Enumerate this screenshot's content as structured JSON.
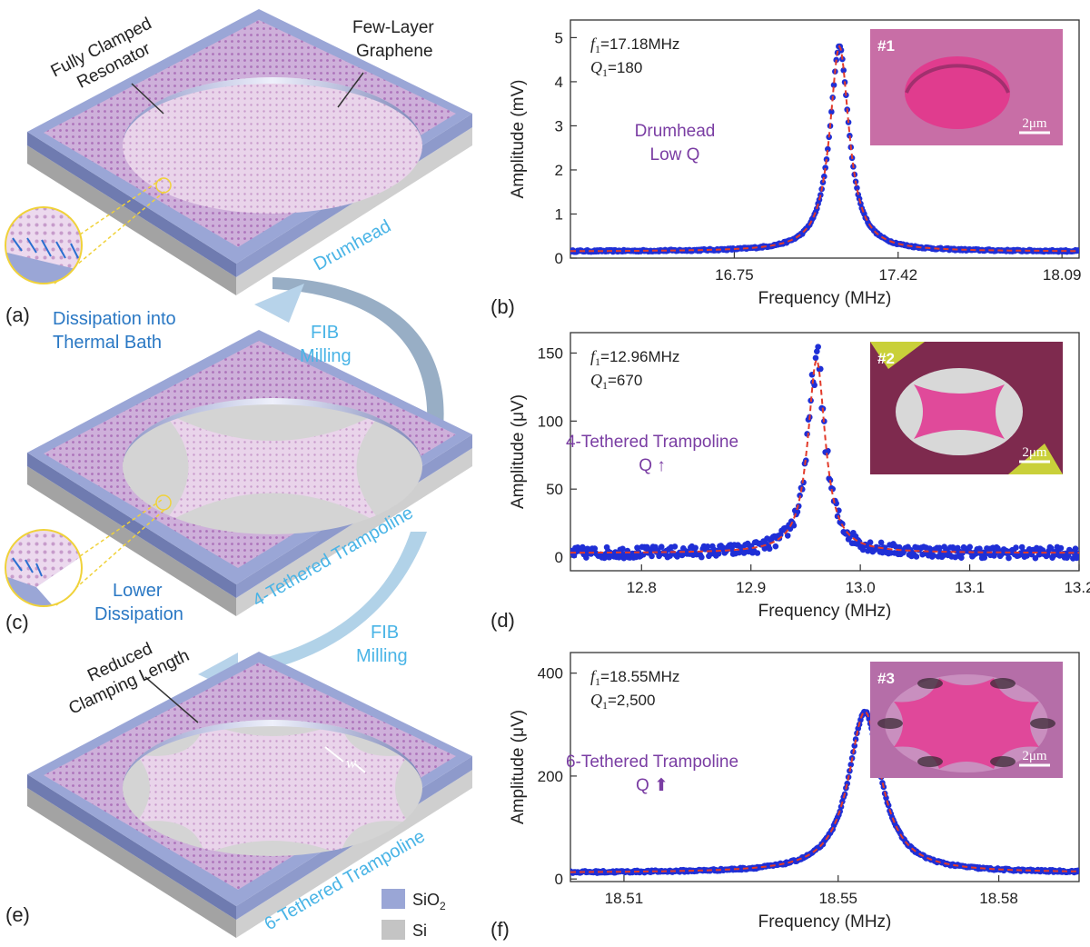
{
  "colors": {
    "sio2": "#9aa6d6",
    "si": "#c4c4c4",
    "graphene": "#d4a9d6",
    "data_points": "#1f2fd6",
    "fit_line": "#e23b2b",
    "label_blue": "#2a78c4",
    "label_cyan": "#49b4e6",
    "label_purple": "#7a3da3"
  },
  "diagrams": {
    "a": {
      "panel_label": "(a)",
      "device_label": "Drumhead",
      "callout_resonator": [
        "Fully Clamped",
        "Resonator"
      ],
      "callout_graphene": [
        "Few-Layer",
        "Graphene"
      ],
      "dissipation": [
        "Dissipation into",
        "Thermal Bath"
      ]
    },
    "c": {
      "panel_label": "(c)",
      "device_label": "4-Tethered Trampoline",
      "dissipation": [
        "Lower",
        "Dissipation"
      ]
    },
    "e": {
      "panel_label": "(e)",
      "device_label": "6-Tethered Trampoline",
      "callout": [
        "Reduced",
        "Clamping Length"
      ],
      "width_label": "w"
    },
    "fib_1": [
      "FIB",
      "Milling"
    ],
    "fib_2": [
      "FIB",
      "Milling"
    ],
    "legend": {
      "sio2_base": "SiO",
      "sio2_sub": "2",
      "si": "Si"
    }
  },
  "chart_data": [
    {
      "panel_label": "(b)",
      "type": "scatter",
      "xlabel": "Frequency (MHz)",
      "ylabel": "Amplitude (mV)",
      "xlim": [
        16.08,
        18.16
      ],
      "ylim": [
        0,
        5.4
      ],
      "xticks": [
        "16.75",
        "17.42",
        "18.09"
      ],
      "xtick_values": [
        16.75,
        17.42,
        18.09
      ],
      "yticks": [
        "0",
        "1",
        "2",
        "3",
        "4",
        "5"
      ],
      "ytick_values": [
        0,
        1,
        2,
        3,
        4,
        5
      ],
      "resonance": {
        "f0": 17.18,
        "peak": 4.8,
        "baseline": 0.15,
        "Q": 180
      },
      "noise": 0.02,
      "annotation_f": {
        "var": "f",
        "sub": "1",
        "value": "=17.18MHz"
      },
      "annotation_q": {
        "var": "Q",
        "sub": "1",
        "value": "=180"
      },
      "device_text": [
        "Drumhead",
        "Low Q"
      ],
      "inset_label": "#1",
      "inset_scale": "2μm",
      "inset_kind": "drum"
    },
    {
      "panel_label": "(d)",
      "type": "scatter",
      "xlabel": "Frequency (MHz)",
      "ylabel": "Amplitude (μV)",
      "xlim": [
        12.735,
        13.2
      ],
      "ylim": [
        -10,
        165
      ],
      "xticks": [
        "12.8",
        "12.9",
        "13.0",
        "13.1",
        "13.2"
      ],
      "xtick_values": [
        12.8,
        12.9,
        13.0,
        13.1,
        13.2
      ],
      "yticks": [
        "0",
        "50",
        "100",
        "150"
      ],
      "ytick_values": [
        0,
        50,
        100,
        150
      ],
      "resonance": {
        "f0": 12.96,
        "peak": 145,
        "baseline": 3,
        "Q": 670
      },
      "noise": 4,
      "annotation_f": {
        "var": "f",
        "sub": "1",
        "value": "=12.96MHz"
      },
      "annotation_q": {
        "var": "Q",
        "sub": "1",
        "value": "=670"
      },
      "device_text": [
        "4-Tethered Trampoline",
        "Q ↑"
      ],
      "inset_label": "#2",
      "inset_scale": "2μm",
      "inset_kind": "tramp4"
    },
    {
      "panel_label": "(f)",
      "type": "scatter",
      "xlabel": "Frequency (MHz)",
      "ylabel": "Amplitude (μV)",
      "xlim": [
        18.5,
        18.595
      ],
      "ylim": [
        -5,
        440
      ],
      "xticks": [
        "18.51",
        "18.55",
        "18.58"
      ],
      "xtick_values": [
        18.51,
        18.55,
        18.58
      ],
      "yticks": [
        "0",
        "200",
        "400"
      ],
      "ytick_values": [
        0,
        200,
        400
      ],
      "resonance": {
        "f0": 18.555,
        "peak": 325,
        "baseline": 12,
        "Q": 2500
      },
      "noise": 2,
      "annotation_f": {
        "var": "f",
        "sub": "1",
        "value": "=18.55MHz"
      },
      "annotation_q": {
        "var": "Q",
        "sub": "1",
        "value": "=2,500"
      },
      "device_text": [
        "6-Tethered Trampoline",
        "Q ⬆"
      ],
      "inset_label": "#3",
      "inset_scale": "2μm",
      "inset_kind": "tramp6"
    }
  ]
}
